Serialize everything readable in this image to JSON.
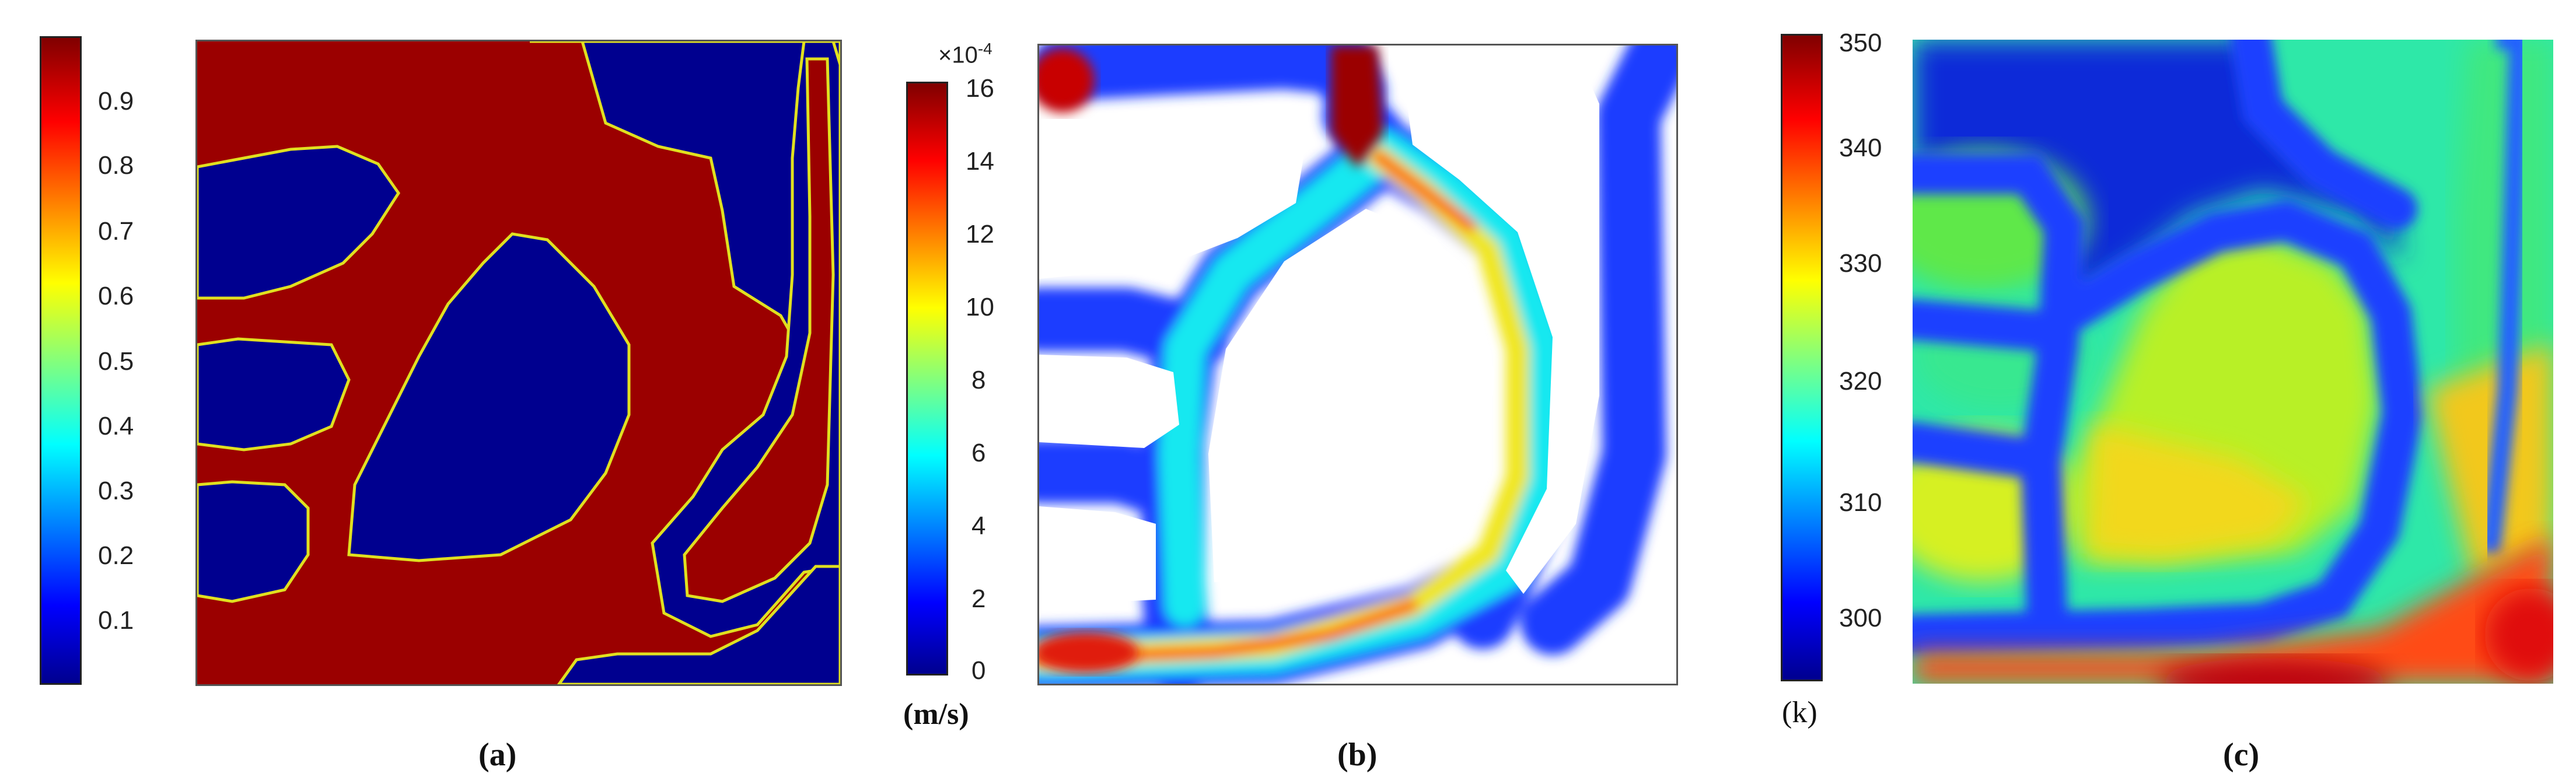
{
  "figure": {
    "panel_a": {
      "caption": "(a)",
      "colorbar_ticks": [
        "0.9",
        "0.8",
        "0.7",
        "0.6",
        "0.5",
        "0.4",
        "0.3",
        "0.2",
        "0.1"
      ],
      "colormap": [
        "#00008f",
        "#0000ff",
        "#00ffff",
        "#ffff00",
        "#ff0000",
        "#800000"
      ]
    },
    "panel_b": {
      "caption": "(b)",
      "unit": "(m/s)",
      "exponent_prefix": "×10",
      "exponent_power": "-4",
      "colorbar_ticks": [
        "16",
        "14",
        "12",
        "10",
        "8",
        "6",
        "4",
        "2",
        "0"
      ],
      "colormap": [
        "#00008f",
        "#0000ff",
        "#00ffff",
        "#ffff00",
        "#ff0000",
        "#800000"
      ]
    },
    "panel_c": {
      "caption": "(c)",
      "unit": "(k)",
      "colorbar_ticks": [
        "350",
        "340",
        "330",
        "320",
        "310",
        "300"
      ],
      "colormap": [
        "#00008f",
        "#0000ff",
        "#00ffff",
        "#ffff00",
        "#ff0000",
        "#800000"
      ]
    }
  }
}
